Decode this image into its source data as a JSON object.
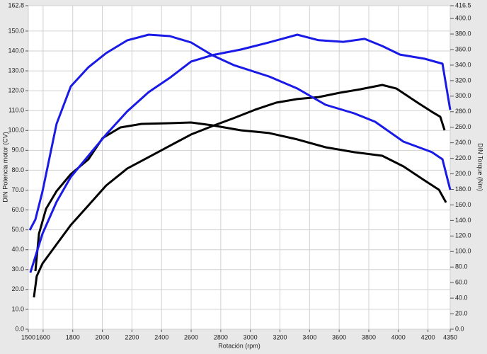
{
  "chart_data": {
    "type": "line",
    "xlabel": "Rotación (rpm)",
    "ylabel": "DIN Potencia motor (CV)",
    "y2label": "DIN Torque (Nm)",
    "xlim": [
      1500,
      4350
    ],
    "xticks": [
      1500,
      1600,
      1800,
      2000,
      2200,
      2400,
      2600,
      2800,
      3000,
      3200,
      3400,
      3600,
      3800,
      4000,
      4200,
      4350
    ],
    "ylim": [
      0,
      162.8
    ],
    "yticks": [
      {
        "value": 0,
        "label": "0.0"
      },
      {
        "value": 10,
        "label": "10.0"
      },
      {
        "value": 20,
        "label": "20.0"
      },
      {
        "value": 30,
        "label": "30.0"
      },
      {
        "value": 40,
        "label": "40.0"
      },
      {
        "value": 50,
        "label": "50.0"
      },
      {
        "value": 60,
        "label": "60.0"
      },
      {
        "value": 70,
        "label": "70.0"
      },
      {
        "value": 80,
        "label": "80.0"
      },
      {
        "value": 90,
        "label": "90.0"
      },
      {
        "value": 100,
        "label": "100.0"
      },
      {
        "value": 110,
        "label": "110.0"
      },
      {
        "value": 120,
        "label": "120.0"
      },
      {
        "value": 130,
        "label": "130.0"
      },
      {
        "value": 140,
        "label": "140.0"
      },
      {
        "value": 150,
        "label": "150.0"
      },
      162.8
    ],
    "y2lim": [
      0,
      416.5
    ],
    "y2ticks": [
      {
        "value": 0,
        "label": "0.0"
      },
      {
        "value": 20,
        "label": "20.0"
      },
      {
        "value": 40,
        "label": "40.0"
      },
      {
        "value": 60,
        "label": "60.0"
      },
      {
        "value": 80,
        "label": "80.0"
      },
      {
        "value": 100,
        "label": "100.0"
      },
      {
        "value": 120,
        "label": "120.0"
      },
      {
        "value": 140,
        "label": "140.0"
      },
      {
        "value": 160,
        "label": "160.0"
      },
      {
        "value": 180,
        "label": "180.0"
      },
      {
        "value": 200,
        "label": "200.0"
      },
      {
        "value": 220,
        "label": "220.0"
      },
      {
        "value": 240,
        "label": "240.0"
      },
      {
        "value": 260,
        "label": "260.0"
      },
      {
        "value": 280,
        "label": "280.0"
      },
      {
        "value": 300,
        "label": "300.0"
      },
      {
        "value": 320,
        "label": "320.0"
      },
      {
        "value": 340,
        "label": "340.0"
      },
      {
        "value": 360,
        "label": "360.0"
      },
      {
        "value": 380,
        "label": "380.0"
      },
      {
        "value": 400,
        "label": "400.0"
      },
      416.5
    ],
    "grid": true,
    "series": [
      {
        "color": "#000000",
        "x": [
          1538,
          1557,
          1596,
          1691,
          1787,
          1906,
          2026,
          2169,
          2313,
          2456,
          2600,
          2743,
          2887,
          3030,
          3174,
          3317,
          3461,
          3604,
          3748,
          3891,
          3987,
          4130,
          4226,
          4283,
          4312
        ],
        "values": [
          16.0,
          26.7,
          33.1,
          42.7,
          52.4,
          62.3,
          72.3,
          80.9,
          86.6,
          92.3,
          98.0,
          102.2,
          106.2,
          110.4,
          114.0,
          115.8,
          116.8,
          119.0,
          120.8,
          122.9,
          121.1,
          114.0,
          109.4,
          106.9,
          100.1
        ]
      },
      {
        "color": "#000000",
        "axis": "y2",
        "x": [
          1548,
          1572,
          1620,
          1691,
          1787,
          1906,
          2002,
          2122,
          2265,
          2456,
          2600,
          2743,
          2935,
          3126,
          3317,
          3508,
          3700,
          3891,
          4034,
          4178,
          4274,
          4322
        ],
        "values": [
          74.7,
          123,
          155,
          177.7,
          199.6,
          218.7,
          246.1,
          259.7,
          264.3,
          265.2,
          266.1,
          262.5,
          256.1,
          252.5,
          244.3,
          234.2,
          227.9,
          223.3,
          209.6,
          191.4,
          179.5,
          163.1
        ]
      },
      {
        "color": "#1a1ae6",
        "x": [
          1514,
          1596,
          1691,
          1787,
          1906,
          2026,
          2169,
          2313,
          2456,
          2600,
          2743,
          2935,
          3126,
          3317,
          3461,
          3628,
          3772,
          3891,
          4011,
          4178,
          4298,
          4350
        ],
        "values": [
          28.5,
          48.1,
          64.1,
          76.6,
          87.3,
          98.0,
          109.7,
          119.3,
          126.5,
          134.7,
          137.9,
          140.7,
          144.3,
          148.2,
          145.4,
          144.6,
          146.1,
          142.5,
          138.2,
          136.1,
          133.6,
          110.4
        ]
      },
      {
        "color": "#1a1ae6",
        "axis": "y2",
        "x": [
          1510,
          1548,
          1596,
          1691,
          1787,
          1906,
          2026,
          2169,
          2313,
          2456,
          2600,
          2743,
          2887,
          3126,
          3317,
          3508,
          3700,
          3843,
          4034,
          4226,
          4298,
          4350
        ],
        "values": [
          127.6,
          141.3,
          177.7,
          264.3,
          312.6,
          337.2,
          355.4,
          371.9,
          379.1,
          377.3,
          369.1,
          352.7,
          340.0,
          325.4,
          309.9,
          288.9,
          278.0,
          267.0,
          241.5,
          227.9,
          218.7,
          179.5
        ]
      }
    ]
  }
}
